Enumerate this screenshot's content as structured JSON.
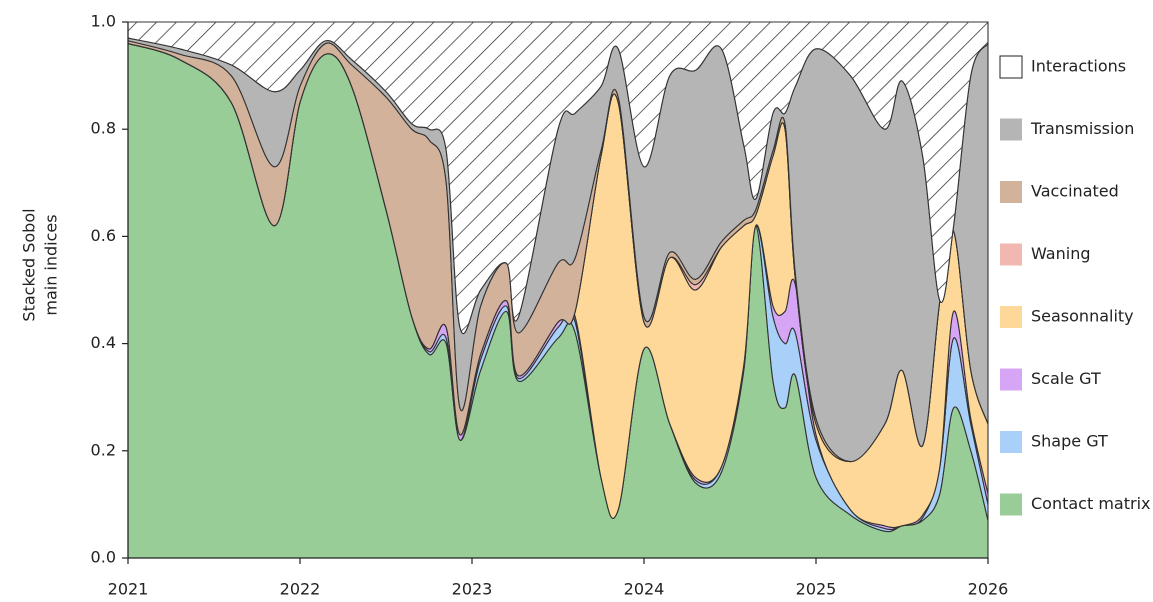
{
  "chart_data": {
    "type": "stacked_area",
    "ylabel": [
      "Stacked Sobol",
      "main indices"
    ],
    "xlim": [
      2021,
      2026
    ],
    "xticks": [
      2021,
      2022,
      2023,
      2024,
      2025,
      2026
    ],
    "ylim": [
      0,
      1
    ],
    "yticks": [
      {
        "value": 0,
        "label": "0.0"
      },
      0.2,
      0.4,
      0.6,
      0.8,
      {
        "value": 1,
        "label": "1.0"
      }
    ],
    "legend": "right",
    "x": [
      2021.0,
      2021.3,
      2021.6,
      2021.85,
      2022.0,
      2022.15,
      2022.3,
      2022.5,
      2022.65,
      2022.75,
      2022.85,
      2022.93,
      2023.05,
      2023.2,
      2023.27,
      2023.5,
      2023.6,
      2023.75,
      2023.85,
      2024.0,
      2024.15,
      2024.3,
      2024.45,
      2024.58,
      2024.65,
      2024.75,
      2024.82,
      2024.88,
      2025.0,
      2025.2,
      2025.4,
      2025.5,
      2025.62,
      2025.72,
      2025.8,
      2025.9,
      2026.0
    ],
    "series": [
      {
        "name": "Contact matrix",
        "color": "#98cd98",
        "values": [
          0.96,
          0.93,
          0.85,
          0.62,
          0.85,
          0.94,
          0.88,
          0.65,
          0.45,
          0.38,
          0.4,
          0.22,
          0.35,
          0.46,
          0.33,
          0.41,
          0.42,
          0.15,
          0.09,
          0.39,
          0.25,
          0.14,
          0.16,
          0.35,
          0.62,
          0.33,
          0.28,
          0.34,
          0.15,
          0.08,
          0.05,
          0.06,
          0.07,
          0.12,
          0.28,
          0.2,
          0.07
        ]
      },
      {
        "name": "Shape GT",
        "color": "#a8d0f8",
        "values": [
          0,
          0,
          0,
          0,
          0,
          0,
          0,
          0,
          0,
          0.005,
          0.01,
          0,
          0.02,
          0.01,
          0.005,
          0.02,
          0.02,
          0,
          0,
          0,
          0,
          0.005,
          0.01,
          0.01,
          0,
          0.12,
          0.12,
          0.08,
          0.07,
          0.01,
          0.005,
          0,
          0.005,
          0.05,
          0.13,
          0.05,
          0.03
        ]
      },
      {
        "name": "Scale GT",
        "color": "#d6a5f5",
        "values": [
          0,
          0,
          0,
          0,
          0,
          0,
          0,
          0,
          0,
          0.005,
          0.02,
          0.01,
          0.01,
          0.01,
          0.005,
          0.01,
          0.01,
          0,
          0,
          0,
          0,
          0.005,
          0,
          0,
          0,
          0.02,
          0.06,
          0.09,
          0.01,
          0,
          0.005,
          0,
          0.005,
          0,
          0.05,
          0.01,
          0.02
        ]
      },
      {
        "name": "Seasonnality",
        "color": "#fed898",
        "values": [
          0,
          0,
          0,
          0,
          0,
          0,
          0,
          0,
          0,
          0,
          0,
          0,
          0,
          0,
          0,
          0,
          0.01,
          0.6,
          0.76,
          0.05,
          0.31,
          0.35,
          0.41,
          0.26,
          0.02,
          0.28,
          0.34,
          0.01,
          0.02,
          0.09,
          0.19,
          0.29,
          0.13,
          0.31,
          0.15,
          0.09,
          0.13
        ]
      },
      {
        "name": "Waning",
        "color": "#f0b8b0",
        "values": [
          0,
          0,
          0,
          0,
          0,
          0,
          0,
          0,
          0,
          0,
          0,
          0,
          0,
          0,
          0,
          0,
          0,
          0,
          0,
          0,
          0,
          0.01,
          0,
          0,
          0,
          0,
          0,
          0,
          0,
          0,
          0,
          0,
          0,
          0,
          0,
          0,
          0
        ]
      },
      {
        "name": "Vaccinated",
        "color": "#d3b29c",
        "values": [
          0.005,
          0.01,
          0.05,
          0.11,
          0.03,
          0.02,
          0.04,
          0.21,
          0.35,
          0.39,
          0.27,
          0.05,
          0.09,
          0.07,
          0.08,
          0.11,
          0.1,
          0.01,
          0.01,
          0.01,
          0.01,
          0.01,
          0.01,
          0.01,
          0.01,
          0.01,
          0.01,
          0.01,
          0.01,
          0,
          0,
          0,
          0,
          0,
          0,
          0,
          0
        ]
      },
      {
        "name": "Transmission",
        "color": "#b5b5b5",
        "values": [
          0.005,
          0.01,
          0.02,
          0.14,
          0.03,
          0.005,
          0.01,
          0.01,
          0.01,
          0.02,
          0.06,
          0.15,
          0.03,
          0,
          0.03,
          0.25,
          0.27,
          0.12,
          0.09,
          0.28,
          0.33,
          0.39,
          0.36,
          0.14,
          0.02,
          0.07,
          0.02,
          0.35,
          0.69,
          0.72,
          0.55,
          0.54,
          0.54,
          0,
          0.01,
          0.55,
          0.71
        ]
      },
      {
        "name": "Interactions",
        "color": "hatch",
        "values": [
          0.03,
          0.05,
          0.08,
          0.13,
          0.09,
          0.035,
          0.07,
          0.13,
          0.19,
          0.2,
          0.24,
          0.57,
          0.5,
          0.45,
          0.55,
          0.2,
          0.17,
          0.12,
          0.05,
          0.27,
          0.1,
          0.09,
          0.05,
          0.23,
          0.33,
          0.17,
          0.17,
          0.12,
          0.05,
          0.1,
          0.2,
          0.11,
          0.25,
          0.52,
          0.38,
          0.1,
          0.04
        ]
      }
    ]
  }
}
